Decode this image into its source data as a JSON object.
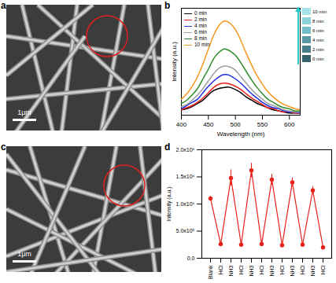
{
  "panels": [
    {
      "panel": "a",
      "type": "image",
      "scale_bar": "1μm"
    },
    {
      "panel": "c",
      "type": "image",
      "scale_bar": "1μm"
    }
  ],
  "chart_data": [
    {
      "panel": "b",
      "type": "line",
      "x_label": "Wavelength (nm)",
      "y_label": "Intensity (a.u.)",
      "x": [
        400,
        410,
        420,
        430,
        440,
        450,
        460,
        470,
        480,
        490,
        500,
        510,
        520,
        530,
        540,
        550,
        560,
        570,
        580,
        590,
        600,
        610,
        620
      ],
      "xlim": [
        400,
        620
      ],
      "xticks": [
        400,
        450,
        500,
        550,
        600
      ],
      "ylim": [
        0,
        1
      ],
      "tick_labels": "x",
      "legend": "top-left",
      "series": [
        {
          "name": "0 min",
          "color": "#000000",
          "values": [
            0.05,
            0.06,
            0.08,
            0.11,
            0.14,
            0.19,
            0.23,
            0.25,
            0.26,
            0.26,
            0.24,
            0.21,
            0.17,
            0.14,
            0.11,
            0.09,
            0.07,
            0.05,
            0.04,
            0.03,
            0.02,
            0.02,
            0.02
          ]
        },
        {
          "name": "2 min",
          "color": "#e8221b",
          "values": [
            0.05,
            0.07,
            0.09,
            0.12,
            0.16,
            0.21,
            0.26,
            0.29,
            0.3,
            0.29,
            0.27,
            0.24,
            0.2,
            0.16,
            0.13,
            0.1,
            0.07,
            0.06,
            0.04,
            0.03,
            0.03,
            0.02,
            0.02
          ]
        },
        {
          "name": "4 min",
          "color": "#1f2fe0",
          "values": [
            0.06,
            0.09,
            0.12,
            0.15,
            0.21,
            0.27,
            0.32,
            0.36,
            0.38,
            0.37,
            0.34,
            0.3,
            0.25,
            0.2,
            0.16,
            0.12,
            0.09,
            0.07,
            0.06,
            0.04,
            0.03,
            0.03,
            0.02
          ]
        },
        {
          "name": "6 min",
          "color": "#a0a0a0",
          "values": [
            0.08,
            0.1,
            0.14,
            0.19,
            0.25,
            0.32,
            0.39,
            0.44,
            0.46,
            0.45,
            0.42,
            0.36,
            0.3,
            0.24,
            0.19,
            0.15,
            0.11,
            0.09,
            0.07,
            0.05,
            0.04,
            0.03,
            0.03
          ]
        },
        {
          "name": "8 min",
          "color": "#2a8a2a",
          "values": [
            0.11,
            0.14,
            0.19,
            0.25,
            0.34,
            0.43,
            0.53,
            0.59,
            0.62,
            0.6,
            0.56,
            0.49,
            0.41,
            0.33,
            0.26,
            0.2,
            0.15,
            0.12,
            0.09,
            0.07,
            0.06,
            0.04,
            0.04
          ]
        },
        {
          "name": "10 min",
          "color": "#f5961e",
          "values": [
            0.15,
            0.2,
            0.27,
            0.36,
            0.48,
            0.62,
            0.75,
            0.84,
            0.88,
            0.86,
            0.8,
            0.7,
            0.58,
            0.47,
            0.37,
            0.29,
            0.22,
            0.17,
            0.13,
            0.1,
            0.08,
            0.06,
            0.05
          ]
        }
      ],
      "annotations": [
        {
          "text": "10 min",
          "color": "#a6e4ea"
        },
        {
          "text": "8 min",
          "color": "#8cd2da"
        },
        {
          "text": "6 min",
          "color": "#74bcc6"
        },
        {
          "text": "4 min",
          "color": "#5a9aa6"
        },
        {
          "text": "2 min",
          "color": "#467e8a"
        },
        {
          "text": "0 min",
          "color": "#35626c"
        }
      ]
    },
    {
      "panel": "d",
      "type": "line",
      "marker": "circle",
      "color": "#e8221b",
      "y_label": "Intensity (a.u.)",
      "categories": [
        "Blank",
        "HCl",
        "NH3",
        "HCl",
        "NH3",
        "HCl",
        "NH3",
        "HCl",
        "NH3",
        "HCl",
        "NH3",
        "HCl"
      ],
      "values": [
        1100000,
        260000,
        1480000,
        250000,
        1620000,
        260000,
        1450000,
        240000,
        1400000,
        250000,
        1250000,
        200000
      ],
      "errors": [
        40000,
        30000,
        150000,
        30000,
        130000,
        30000,
        100000,
        30000,
        80000,
        30000,
        70000,
        30000
      ],
      "ylim": [
        0,
        2000000
      ],
      "yticks": [
        {
          "value": 0,
          "label": "0.0"
        },
        {
          "value": 500000,
          "label": "5.0x10⁵"
        },
        {
          "value": 1000000,
          "label": "1.0x10⁶"
        },
        {
          "value": 1500000,
          "label": "1.5x10⁶"
        },
        {
          "value": 2000000,
          "label": "2.0x10⁶"
        }
      ]
    }
  ]
}
